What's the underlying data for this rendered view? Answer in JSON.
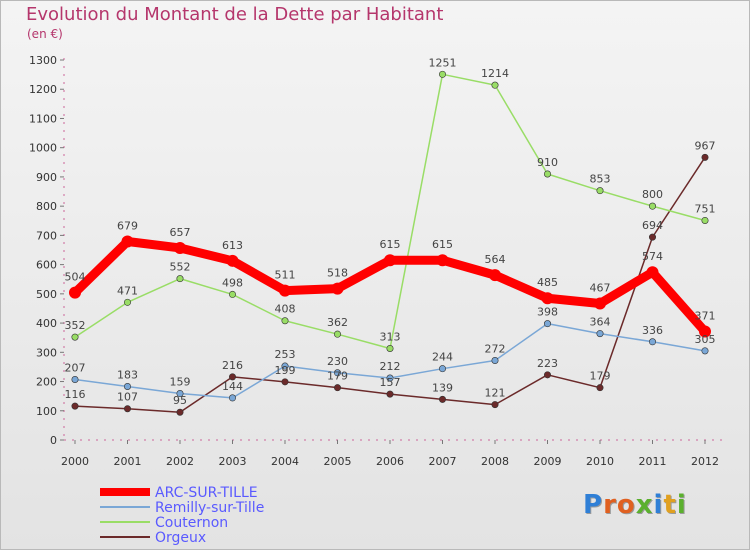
{
  "title": "Evolution du Montant de la Dette par Habitant",
  "unit": "(en €)",
  "logo": {
    "text": "Proxiti",
    "colors": [
      "#2f7fd6",
      "#e06020",
      "#e06020",
      "#5bb02e",
      "#2f7fd6",
      "#e0a020",
      "#5bb02e"
    ]
  },
  "chart_data": {
    "type": "line",
    "x": [
      "2000",
      "2001",
      "2002",
      "2003",
      "2004",
      "2005",
      "2006",
      "2007",
      "2008",
      "2009",
      "2010",
      "2011",
      "2012"
    ],
    "ylim": [
      0,
      1300
    ],
    "yticks": [
      0,
      100,
      200,
      300,
      400,
      500,
      600,
      700,
      800,
      900,
      1000,
      1100,
      1200,
      1300
    ],
    "grid": false,
    "legend_placement": "bottom-left",
    "series": [
      {
        "name": "ARC-SUR-TILLE",
        "color": "#ff0000",
        "legend_text_color": "#5a5aff",
        "values": [
          504,
          679,
          657,
          613,
          511,
          518,
          615,
          615,
          564,
          485,
          467,
          574,
          371
        ]
      },
      {
        "name": "Remilly-sur-Tille",
        "color": "#7aa7d6",
        "legend_text_color": "#5a5aff",
        "values": [
          207,
          183,
          159,
          144,
          253,
          230,
          212,
          244,
          272,
          398,
          364,
          336,
          305
        ]
      },
      {
        "name": "Couternon",
        "color": "#99dd66",
        "legend_text_color": "#5a5aff",
        "values": [
          352,
          471,
          552,
          498,
          408,
          362,
          313,
          1251,
          1214,
          910,
          853,
          800,
          751
        ]
      },
      {
        "name": "Orgeux",
        "color": "#6b2a2a",
        "legend_text_color": "#5a5aff",
        "values": [
          116,
          107,
          95,
          216,
          199,
          179,
          157,
          139,
          121,
          223,
          179,
          694,
          967
        ]
      }
    ]
  }
}
